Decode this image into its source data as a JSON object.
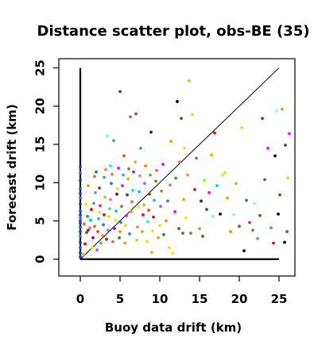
{
  "chart_data": {
    "type": "scatter",
    "title": "Distance scatter plot, obs-BE (35)",
    "xlabel": "Buoy data drift (km)",
    "ylabel": "Forecast drift (km)",
    "xlim": [
      -2.7,
      27
    ],
    "ylim": [
      -2.2,
      26.2
    ],
    "xticks": [
      0,
      5,
      10,
      15,
      20,
      25
    ],
    "yticks": [
      0,
      5,
      10,
      15,
      20,
      25
    ],
    "grid": false,
    "legend": "none",
    "reference_line": {
      "from": [
        0,
        0
      ],
      "to": [
        25,
        25
      ]
    },
    "axis_lines": {
      "x_to": 25,
      "y_to": 25
    },
    "points": [
      {
        "x": 0.0,
        "y": 0.3,
        "c": "#1f3fbf"
      },
      {
        "x": 0.0,
        "y": 0.8,
        "c": "#1f3fbf"
      },
      {
        "x": 0.0,
        "y": 1.5,
        "c": "#2060d0"
      },
      {
        "x": 0.0,
        "y": 2.2,
        "c": "#1f3fbf"
      },
      {
        "x": 0.0,
        "y": 3.0,
        "c": "#4070e0"
      },
      {
        "x": 0.0,
        "y": 3.6,
        "c": "#1f3fbf"
      },
      {
        "x": 0.0,
        "y": 4.2,
        "c": "#2060d0"
      },
      {
        "x": 0.0,
        "y": 4.7,
        "c": "#1f3fbf"
      },
      {
        "x": 0.0,
        "y": 5.0,
        "c": "#1f3fbf"
      },
      {
        "x": 0.0,
        "y": 5.4,
        "c": "#4070e0"
      },
      {
        "x": 0.0,
        "y": 5.8,
        "c": "#1f3fbf"
      },
      {
        "x": 0.0,
        "y": 6.3,
        "c": "#2060d0"
      },
      {
        "x": 0.0,
        "y": 7.2,
        "c": "#1f3fbf"
      },
      {
        "x": 0.0,
        "y": 8.0,
        "c": "#4070e0"
      },
      {
        "x": 0.0,
        "y": 8.6,
        "c": "#1f3fbf"
      },
      {
        "x": 0.0,
        "y": 9.2,
        "c": "#2060d0"
      },
      {
        "x": 0.0,
        "y": 10.3,
        "c": "#1f3fbf"
      },
      {
        "x": 0.0,
        "y": 11.3,
        "c": "#4070e0"
      },
      {
        "x": 0.0,
        "y": 12.1,
        "c": "#1f3fbf"
      },
      {
        "x": 0.4,
        "y": 0.6,
        "c": "#ff9900"
      },
      {
        "x": 0.6,
        "y": 2.0,
        "c": "#ff0000"
      },
      {
        "x": 0.8,
        "y": 3.5,
        "c": "#8b4513"
      },
      {
        "x": 0.5,
        "y": 4.6,
        "c": "#ff6600"
      },
      {
        "x": 0.9,
        "y": 5.6,
        "c": "#00bb00"
      },
      {
        "x": 0.7,
        "y": 7.2,
        "c": "#e8e800"
      },
      {
        "x": 1.0,
        "y": 3.8,
        "c": "#b22222"
      },
      {
        "x": 1.2,
        "y": 4.1,
        "c": "#ff66cc"
      },
      {
        "x": 1.3,
        "y": 5.1,
        "c": "#00cccc"
      },
      {
        "x": 1.0,
        "y": 9.6,
        "c": "#ff9900"
      },
      {
        "x": 1.5,
        "y": 1.5,
        "c": "#e8e800"
      },
      {
        "x": 1.6,
        "y": 2.8,
        "c": "#8b008b"
      },
      {
        "x": 1.8,
        "y": 4.3,
        "c": "#d2691e"
      },
      {
        "x": 1.4,
        "y": 6.5,
        "c": "#ff0000"
      },
      {
        "x": 1.7,
        "y": 7.3,
        "c": "#3cb371"
      },
      {
        "x": 1.9,
        "y": 8.7,
        "c": "#6495ed"
      },
      {
        "x": 1.8,
        "y": 10.8,
        "c": "#b8860b"
      },
      {
        "x": 2.0,
        "y": 11.4,
        "c": "#228b22"
      },
      {
        "x": 2.1,
        "y": 1.2,
        "c": "#9370db"
      },
      {
        "x": 2.2,
        "y": 3.6,
        "c": "#ff4500"
      },
      {
        "x": 2.3,
        "y": 5.3,
        "c": "#00ced1"
      },
      {
        "x": 2.4,
        "y": 6.1,
        "c": "#e8e800"
      },
      {
        "x": 2.5,
        "y": 7.0,
        "c": "#ff1493"
      },
      {
        "x": 2.4,
        "y": 9.3,
        "c": "#8b4513"
      },
      {
        "x": 2.6,
        "y": 2.1,
        "c": "#32cd32"
      },
      {
        "x": 2.8,
        "y": 3.1,
        "c": "#ff9900"
      },
      {
        "x": 2.9,
        "y": 4.5,
        "c": "#4169e1"
      },
      {
        "x": 3.0,
        "y": 5.8,
        "c": "#dc143c"
      },
      {
        "x": 3.1,
        "y": 8.1,
        "c": "#9acd32"
      },
      {
        "x": 3.0,
        "y": 10.7,
        "c": "#20b2aa"
      },
      {
        "x": 3.2,
        "y": 11.7,
        "c": "#ff8c00"
      },
      {
        "x": 3.4,
        "y": 16.1,
        "c": "#7fffd4"
      },
      {
        "x": 3.3,
        "y": 2.6,
        "c": "#b22222"
      },
      {
        "x": 3.5,
        "y": 3.8,
        "c": "#6495ed"
      },
      {
        "x": 3.6,
        "y": 5.6,
        "c": "#ffd700"
      },
      {
        "x": 3.7,
        "y": 6.6,
        "c": "#8fbc8f"
      },
      {
        "x": 3.8,
        "y": 7.8,
        "c": "#ff69b4"
      },
      {
        "x": 3.9,
        "y": 9.9,
        "c": "#2e8b57"
      },
      {
        "x": 4.0,
        "y": 11.1,
        "c": "#cd853f"
      },
      {
        "x": 3.8,
        "y": 12.2,
        "c": "#00ffff"
      },
      {
        "x": 4.2,
        "y": 15.5,
        "c": "#3cb371"
      },
      {
        "x": 4.1,
        "y": 2.3,
        "c": "#ff6347"
      },
      {
        "x": 4.3,
        "y": 4.0,
        "c": "#9400d3"
      },
      {
        "x": 4.4,
        "y": 5.1,
        "c": "#e8e800"
      },
      {
        "x": 4.5,
        "y": 6.3,
        "c": "#00bfff"
      },
      {
        "x": 4.6,
        "y": 8.5,
        "c": "#8b0000"
      },
      {
        "x": 4.7,
        "y": 9.2,
        "c": "#adff2f"
      },
      {
        "x": 4.8,
        "y": 11.9,
        "c": "#ff1493"
      },
      {
        "x": 4.9,
        "y": 2.8,
        "c": "#228b22"
      },
      {
        "x": 5.0,
        "y": 3.6,
        "c": "#ff8c00"
      },
      {
        "x": 5.0,
        "y": 21.9,
        "c": "#b22222"
      },
      {
        "x": 5.1,
        "y": 4.8,
        "c": "#4682b4"
      },
      {
        "x": 5.2,
        "y": 6.9,
        "c": "#d2691e"
      },
      {
        "x": 5.3,
        "y": 9.6,
        "c": "#9932cc"
      },
      {
        "x": 5.4,
        "y": 11.0,
        "c": "#00ced1"
      },
      {
        "x": 5.5,
        "y": 13.5,
        "c": "#ff4500"
      },
      {
        "x": 5.6,
        "y": 2.1,
        "c": "#ff9900"
      },
      {
        "x": 5.7,
        "y": 4.4,
        "c": "#e8e800"
      },
      {
        "x": 5.8,
        "y": 5.7,
        "c": "#ff00ff"
      },
      {
        "x": 5.9,
        "y": 8.4,
        "c": "#2f4f4f"
      },
      {
        "x": 6.0,
        "y": 10.5,
        "c": "#ffa500"
      },
      {
        "x": 6.1,
        "y": 11.8,
        "c": "#6b8e23"
      },
      {
        "x": 6.3,
        "y": 18.6,
        "c": "#cd5c5c"
      },
      {
        "x": 6.2,
        "y": 3.3,
        "c": "#1e90ff"
      },
      {
        "x": 6.4,
        "y": 6.2,
        "c": "#daa520"
      },
      {
        "x": 6.5,
        "y": 7.5,
        "c": "#ff6347"
      },
      {
        "x": 6.6,
        "y": 9.0,
        "c": "#00fa9a"
      },
      {
        "x": 6.7,
        "y": 11.4,
        "c": "#8a2be2"
      },
      {
        "x": 6.9,
        "y": 12.7,
        "c": "#f4a460"
      },
      {
        "x": 7.0,
        "y": 19.0,
        "c": "#a0522d"
      },
      {
        "x": 7.1,
        "y": 2.5,
        "c": "#7fff00"
      },
      {
        "x": 7.2,
        "y": 4.2,
        "c": "#ff7f50"
      },
      {
        "x": 7.3,
        "y": 6.8,
        "c": "#e8e800"
      },
      {
        "x": 7.4,
        "y": 8.8,
        "c": "#00bfff"
      },
      {
        "x": 7.5,
        "y": 10.9,
        "c": "#ff69b4"
      },
      {
        "x": 7.6,
        "y": 14.5,
        "c": "#3cb371"
      },
      {
        "x": 7.8,
        "y": 3.6,
        "c": "#daa520"
      },
      {
        "x": 7.9,
        "y": 5.8,
        "c": "#ff0000"
      },
      {
        "x": 8.0,
        "y": 7.1,
        "c": "#9acd32"
      },
      {
        "x": 8.1,
        "y": 9.9,
        "c": "#ba55d3"
      },
      {
        "x": 8.2,
        "y": 12.2,
        "c": "#ff8c00"
      },
      {
        "x": 8.4,
        "y": 2.3,
        "c": "#ffd700"
      },
      {
        "x": 8.5,
        "y": 4.9,
        "c": "#40e0d0"
      },
      {
        "x": 8.6,
        "y": 6.4,
        "c": "#ff4500"
      },
      {
        "x": 8.7,
        "y": 8.5,
        "c": "#8b4513"
      },
      {
        "x": 8.8,
        "y": 11.0,
        "c": "#32cd32"
      },
      {
        "x": 8.9,
        "y": 16.6,
        "c": "#191970"
      },
      {
        "x": 9.0,
        "y": 0.9,
        "c": "#ffa500"
      },
      {
        "x": 9.1,
        "y": 3.7,
        "c": "#e8e800"
      },
      {
        "x": 9.2,
        "y": 5.5,
        "c": "#dc143c"
      },
      {
        "x": 9.3,
        "y": 7.7,
        "c": "#00ced1"
      },
      {
        "x": 9.5,
        "y": 10.2,
        "c": "#6b8e23"
      },
      {
        "x": 9.6,
        "y": 11.6,
        "c": "#ff6347"
      },
      {
        "x": 9.8,
        "y": 2.8,
        "c": "#ff9900"
      },
      {
        "x": 10.0,
        "y": 4.4,
        "c": "#e8e800"
      },
      {
        "x": 10.1,
        "y": 6.9,
        "c": "#9370db"
      },
      {
        "x": 10.2,
        "y": 8.9,
        "c": "#b8860b"
      },
      {
        "x": 10.4,
        "y": 12.4,
        "c": "#ff1493"
      },
      {
        "x": 10.5,
        "y": 3.2,
        "c": "#2e8b57"
      },
      {
        "x": 10.8,
        "y": 5.0,
        "c": "#ff8c00"
      },
      {
        "x": 11.0,
        "y": 7.6,
        "c": "#4682b4"
      },
      {
        "x": 11.2,
        "y": 1.5,
        "c": "#ffd700"
      },
      {
        "x": 11.3,
        "y": 9.7,
        "c": "#cd853f"
      },
      {
        "x": 11.4,
        "y": 15.4,
        "c": "#ff9900"
      },
      {
        "x": 11.6,
        "y": 0.8,
        "c": "#e8e800"
      },
      {
        "x": 11.9,
        "y": 6.2,
        "c": "#ff00ff"
      },
      {
        "x": 12.0,
        "y": 10.6,
        "c": "#00bb00"
      },
      {
        "x": 12.2,
        "y": 20.6,
        "c": "#000000"
      },
      {
        "x": 12.4,
        "y": 4.0,
        "c": "#556b2f"
      },
      {
        "x": 12.5,
        "y": 12.7,
        "c": "#ff6347"
      },
      {
        "x": 12.7,
        "y": 18.4,
        "c": "#8b4513"
      },
      {
        "x": 12.9,
        "y": 3.4,
        "c": "#228b22"
      },
      {
        "x": 13.0,
        "y": 7.8,
        "c": "#ffa500"
      },
      {
        "x": 13.1,
        "y": 14.5,
        "c": "#ffd700"
      },
      {
        "x": 13.3,
        "y": 5.4,
        "c": "#e8e800"
      },
      {
        "x": 13.5,
        "y": 11.0,
        "c": "#ff9900"
      },
      {
        "x": 13.7,
        "y": 23.3,
        "c": "#ffb000"
      },
      {
        "x": 13.9,
        "y": 3.4,
        "c": "#6b8e23"
      },
      {
        "x": 14.1,
        "y": 18.9,
        "c": "#ffd700"
      },
      {
        "x": 14.4,
        "y": 9.1,
        "c": "#b22222"
      },
      {
        "x": 14.6,
        "y": 13.2,
        "c": "#1e90ff"
      },
      {
        "x": 15.0,
        "y": 4.0,
        "c": "#ff8c00"
      },
      {
        "x": 15.2,
        "y": 7.6,
        "c": "#8b0000"
      },
      {
        "x": 15.4,
        "y": 3.0,
        "c": "#556b2f"
      },
      {
        "x": 15.6,
        "y": 10.3,
        "c": "#7fff00"
      },
      {
        "x": 15.9,
        "y": 6.5,
        "c": "#8b4513"
      },
      {
        "x": 16.2,
        "y": 8.7,
        "c": "#ff00ff"
      },
      {
        "x": 16.5,
        "y": 13.6,
        "c": "#ffa500"
      },
      {
        "x": 16.7,
        "y": 5.6,
        "c": "#7fffd4"
      },
      {
        "x": 16.9,
        "y": 16.5,
        "c": "#ff0000"
      },
      {
        "x": 17.2,
        "y": 9.6,
        "c": "#00ced1"
      },
      {
        "x": 17.6,
        "y": 5.9,
        "c": "#000000"
      },
      {
        "x": 17.9,
        "y": 11.0,
        "c": "#e8e800"
      },
      {
        "x": 18.2,
        "y": 11.3,
        "c": "#ffd700"
      },
      {
        "x": 18.5,
        "y": 8.0,
        "c": "#ff9900"
      },
      {
        "x": 18.9,
        "y": 3.6,
        "c": "#ff8c00"
      },
      {
        "x": 19.3,
        "y": 5.8,
        "c": "#7fffd4"
      },
      {
        "x": 19.6,
        "y": 9.9,
        "c": "#9acd32"
      },
      {
        "x": 20.0,
        "y": 4.3,
        "c": "#556b2f"
      },
      {
        "x": 20.3,
        "y": 17.2,
        "c": "#adff2f"
      },
      {
        "x": 20.6,
        "y": 1.1,
        "c": "#000000"
      },
      {
        "x": 20.9,
        "y": 7.7,
        "c": "#556b2f"
      },
      {
        "x": 21.3,
        "y": 4.8,
        "c": "#ff1493"
      },
      {
        "x": 21.7,
        "y": 3.8,
        "c": "#6b8e23"
      },
      {
        "x": 21.9,
        "y": 7.3,
        "c": "#7fffd4"
      },
      {
        "x": 22.3,
        "y": 2.7,
        "c": "#6495ed"
      },
      {
        "x": 22.6,
        "y": 5.7,
        "c": "#8b4513"
      },
      {
        "x": 22.9,
        "y": 18.4,
        "c": "#b22222"
      },
      {
        "x": 23.2,
        "y": 10.4,
        "c": "#2e8b57"
      },
      {
        "x": 23.6,
        "y": 14.5,
        "c": "#ff00ff"
      },
      {
        "x": 24.0,
        "y": 4.1,
        "c": "#3cb371"
      },
      {
        "x": 24.3,
        "y": 2.1,
        "c": "#ff0000"
      },
      {
        "x": 24.5,
        "y": 13.5,
        "c": "#000000"
      },
      {
        "x": 24.7,
        "y": 19.4,
        "c": "#7fffd4"
      },
      {
        "x": 24.9,
        "y": 5.9,
        "c": "#000000"
      },
      {
        "x": 25.1,
        "y": 8.4,
        "c": "#8b4513"
      },
      {
        "x": 25.4,
        "y": 19.6,
        "c": "#daa520"
      },
      {
        "x": 25.7,
        "y": 2.2,
        "c": "#000000"
      },
      {
        "x": 25.8,
        "y": 14.9,
        "c": "#2f4f4f"
      },
      {
        "x": 26.0,
        "y": 3.6,
        "c": "#556b2f"
      },
      {
        "x": 26.1,
        "y": 10.6,
        "c": "#ffd700"
      },
      {
        "x": 26.3,
        "y": 16.4,
        "c": "#ff00ff"
      }
    ]
  }
}
